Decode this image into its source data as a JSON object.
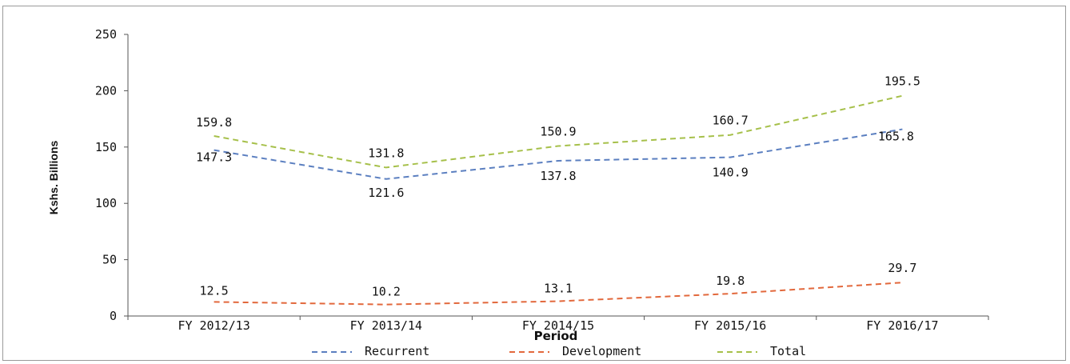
{
  "chart_data": {
    "type": "line",
    "categories": [
      "FY 2012/13",
      "FY 2013/14",
      "FY 2014/15",
      "FY 2015/16",
      "FY 2016/17"
    ],
    "series": [
      {
        "name": "Recurrent",
        "values": [
          147.3,
          121.6,
          137.8,
          140.9,
          165.8
        ],
        "color": "#5b7fc0"
      },
      {
        "name": "Development",
        "values": [
          12.5,
          10.2,
          13.1,
          19.8,
          29.7
        ],
        "color": "#e2683c"
      },
      {
        "name": "Total",
        "values": [
          159.8,
          131.8,
          150.9,
          160.7,
          195.5
        ],
        "color": "#a6c04a"
      }
    ],
    "xlabel": "Period",
    "ylabel": "Kshs. Billions",
    "ylim": [
      0,
      250
    ],
    "yticks": [
      "0",
      "50",
      "100",
      "150",
      "200",
      "250"
    ],
    "data_labels": {
      "Recurrent": [
        "147.3",
        "121.6",
        "137.8",
        "140.9",
        "165.8"
      ],
      "Development": [
        "12.5",
        "10.2",
        "13.1",
        "19.8",
        "29.7"
      ],
      "Total": [
        "159.8",
        "131.8",
        "150.9",
        "160.7",
        "195.5"
      ]
    },
    "legend_position": "bottom",
    "grid": false
  }
}
